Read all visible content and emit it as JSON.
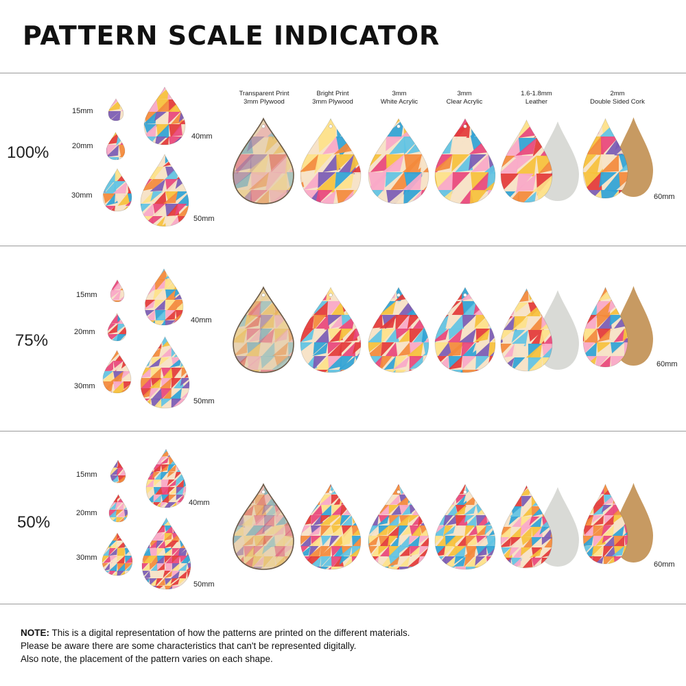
{
  "title": "PATTERN SCALE INDICATOR",
  "materials": [
    {
      "line1": "Transparent Print",
      "line2": "3mm Plywood"
    },
    {
      "line1": "Bright Print",
      "line2": "3mm Plywood"
    },
    {
      "line1": "3mm",
      "line2": "White Acrylic"
    },
    {
      "line1": "3mm",
      "line2": "Clear Acrylic"
    },
    {
      "line1": "1.6-1.8mm",
      "line2": "Leather"
    },
    {
      "line1": "2mm",
      "line2": "Double Sided Cork"
    }
  ],
  "sections": [
    {
      "scale": "100%",
      "sizes": [
        "15mm",
        "20mm",
        "30mm",
        "40mm",
        "50mm"
      ],
      "material_size": "60mm"
    },
    {
      "scale": "75%",
      "sizes": [
        "15mm",
        "20mm",
        "30mm",
        "40mm",
        "50mm"
      ],
      "material_size": "60mm"
    },
    {
      "scale": "50%",
      "sizes": [
        "15mm",
        "20mm",
        "30mm",
        "40mm",
        "50mm"
      ],
      "material_size": "60mm"
    }
  ],
  "note": {
    "label": "NOTE:",
    "line1": " This is a digital representation of how the patterns are printed on the different materials.",
    "line2": "Please be aware there are some characteristics that can't be represented digitally.",
    "line3": "Also note, the placement of the pattern varies on each shape."
  },
  "colors": {
    "pink": "#e8467c",
    "blue": "#2fa3d6",
    "yellow": "#f6c13c",
    "orange": "#f38a3c",
    "purple": "#7a5bb5",
    "red": "#e33a3a",
    "cream": "#f6e3c8",
    "leather": "#d9dad6",
    "cork": "#c79a62"
  }
}
